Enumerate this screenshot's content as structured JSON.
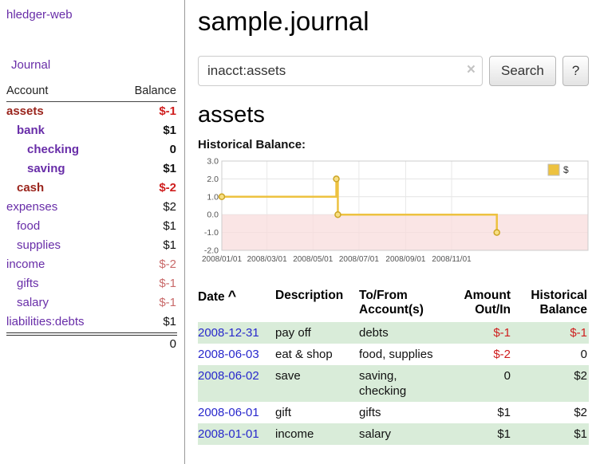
{
  "brand": "hledger-web",
  "nav": {
    "journal": "Journal"
  },
  "colors": {
    "link_purple": "#682da8",
    "negative_red": "#cf1d1d",
    "negative_soft_red": "#c96a6a",
    "maroon_account": "#9a241c",
    "date_link_blue": "#2828cc",
    "row_stripe_green": "#d9ecd9",
    "chart_series_gold": "#edc240",
    "chart_negative_pink": "#f8dcdc"
  },
  "icons": {
    "clear": "×",
    "sort_asc": "^"
  },
  "sidebar": {
    "account_header": "Account",
    "balance_header": "Balance",
    "accounts": [
      {
        "name": "assets",
        "indent": 0,
        "balance": "$-1",
        "emphasis": true,
        "name_style": "maroon",
        "balance_style": "neg"
      },
      {
        "name": "bank",
        "indent": 1,
        "balance": "$1",
        "emphasis": true,
        "name_style": "",
        "balance_style": ""
      },
      {
        "name": "checking",
        "indent": 2,
        "balance": "0",
        "emphasis": true,
        "name_style": "",
        "balance_style": ""
      },
      {
        "name": "saving",
        "indent": 2,
        "balance": "$1",
        "emphasis": true,
        "name_style": "",
        "balance_style": ""
      },
      {
        "name": "cash",
        "indent": 1,
        "balance": "$-2",
        "emphasis": true,
        "name_style": "maroon",
        "balance_style": "neg"
      },
      {
        "name": "expenses",
        "indent": 0,
        "balance": "$2",
        "emphasis": false,
        "name_style": "",
        "balance_style": ""
      },
      {
        "name": "food",
        "indent": 1,
        "balance": "$1",
        "emphasis": false,
        "name_style": "",
        "balance_style": ""
      },
      {
        "name": "supplies",
        "indent": 1,
        "balance": "$1",
        "emphasis": false,
        "name_style": "",
        "balance_style": ""
      },
      {
        "name": "income",
        "indent": 0,
        "balance": "$-2",
        "emphasis": false,
        "name_style": "",
        "balance_style": "neg-soft"
      },
      {
        "name": "gifts",
        "indent": 1,
        "balance": "$-1",
        "emphasis": false,
        "name_style": "",
        "balance_style": "neg-soft"
      },
      {
        "name": "salary",
        "indent": 1,
        "balance": "$-1",
        "emphasis": false,
        "name_style": "",
        "balance_style": "neg-soft"
      },
      {
        "name": "liabilities:debts",
        "indent": 0,
        "balance": "$1",
        "emphasis": false,
        "name_style": "",
        "balance_style": ""
      }
    ],
    "total": "0"
  },
  "main": {
    "title": "sample.journal",
    "search": {
      "value": "inacct:assets",
      "button_label": "Search",
      "help_label": "?"
    },
    "account_title": "assets",
    "chart_heading": "Historical Balance:"
  },
  "chart_data": {
    "type": "line",
    "step": true,
    "title": "Historical Balance of assets",
    "series": [
      {
        "name": "$",
        "color": "#edc240",
        "points": [
          {
            "x": "2008-01-01",
            "y": 1
          },
          {
            "x": "2008-06-01",
            "y": 2
          },
          {
            "x": "2008-06-03",
            "y": 0
          },
          {
            "x": "2008-12-31",
            "y": -1
          }
        ]
      }
    ],
    "ylim": [
      -2,
      3
    ],
    "xlim": [
      "2008-01-01",
      "2009-05-01"
    ],
    "y_ticks": [
      "3.0",
      "2.0",
      "1.0",
      "0.0",
      "-1.0",
      "-2.0"
    ],
    "x_ticks": [
      "2008/01/01",
      "2008/03/01",
      "2008/05/01",
      "2008/07/01",
      "2008/09/01",
      "2008/11/01"
    ],
    "negative_region_color": "#f8dcdc",
    "grid": true,
    "legend_position": "top-right"
  },
  "register": {
    "headers": {
      "date": "Date",
      "description": "Description",
      "accounts": "To/From Account(s)",
      "amount": "Amount Out/In",
      "balance": "Historical Balance"
    },
    "rows": [
      {
        "date": "2008-12-31",
        "description": "pay off",
        "accounts": "debts",
        "amount": "$-1",
        "amount_negative": true,
        "balance": "$-1",
        "balance_negative": true
      },
      {
        "date": "2008-06-03",
        "description": "eat & shop",
        "accounts": "food, supplies",
        "amount": "$-2",
        "amount_negative": true,
        "balance": "0",
        "balance_negative": false
      },
      {
        "date": "2008-06-02",
        "description": "save",
        "accounts": "saving, checking",
        "amount": "0",
        "amount_negative": false,
        "balance": "$2",
        "balance_negative": false
      },
      {
        "date": "2008-06-01",
        "description": "gift",
        "accounts": "gifts",
        "amount": "$1",
        "amount_negative": false,
        "balance": "$2",
        "balance_negative": false
      },
      {
        "date": "2008-01-01",
        "description": "income",
        "accounts": "salary",
        "amount": "$1",
        "amount_negative": false,
        "balance": "$1",
        "balance_negative": false
      }
    ]
  }
}
